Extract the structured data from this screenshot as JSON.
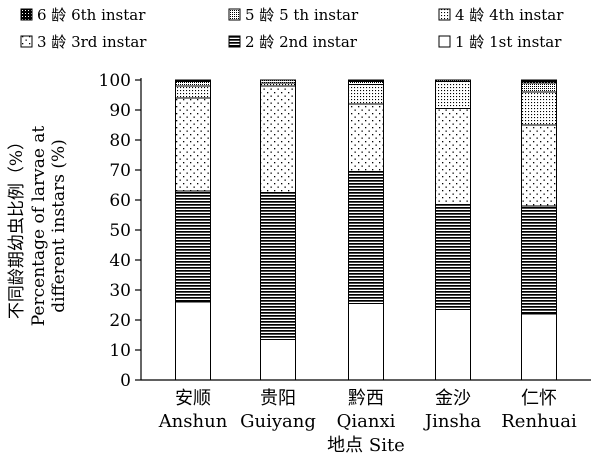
{
  "chart_data": {
    "type": "bar",
    "stacked": true,
    "xlabel": "地点 Site",
    "ylabel_cn": "不同龄期幼虫比例（%）",
    "ylabel_en_1": "Percentage of larvae at",
    "ylabel_en_2": "different instars (%)",
    "ylim": [
      0,
      100
    ],
    "yticks": [
      0,
      10,
      20,
      30,
      40,
      50,
      60,
      70,
      80,
      90,
      100
    ],
    "categories": [
      {
        "cn": "安顺",
        "en": "Anshun"
      },
      {
        "cn": "贵阳",
        "en": "Guiyang"
      },
      {
        "cn": "黔西",
        "en": "Qianxi"
      },
      {
        "cn": "金沙",
        "en": "Jinsha"
      },
      {
        "cn": "仁怀",
        "en": "Renhuai"
      }
    ],
    "series": [
      {
        "name": "1 龄 1st instar",
        "pattern": "blank",
        "values": [
          26.0,
          13.5,
          25.5,
          23.5,
          22.0
        ]
      },
      {
        "name": "2 龄 2nd instar",
        "pattern": "hstripes",
        "values": [
          37.0,
          49.0,
          44.0,
          35.0,
          36.0
        ]
      },
      {
        "name": "3 龄 3rd instar",
        "pattern": "dots",
        "values": [
          31.0,
          35.5,
          22.5,
          32.0,
          27.0
        ]
      },
      {
        "name": "4 龄 4th instar",
        "pattern": "grid-dots",
        "values": [
          4.0,
          1.0,
          6.5,
          9.0,
          11.0
        ]
      },
      {
        "name": "5 龄 5 th instar",
        "pattern": "dense-dots",
        "values": [
          1.5,
          1.0,
          1.0,
          0.5,
          3.0
        ]
      },
      {
        "name": "6 龄 6th instar",
        "pattern": "crosshatch",
        "values": [
          0.5,
          0.0,
          0.5,
          0.0,
          1.0
        ]
      }
    ],
    "legend_position": "top",
    "grid": false
  }
}
